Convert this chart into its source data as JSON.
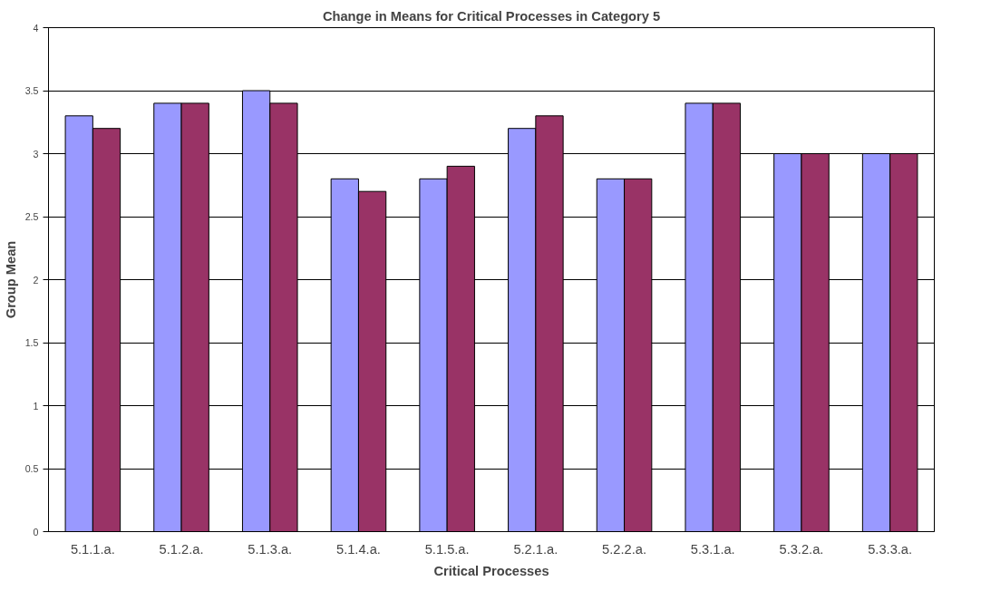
{
  "chart_data": {
    "type": "bar",
    "title": "Change in Means for Critical Processes in Category 5",
    "xlabel": "Critical Processes",
    "ylabel": "Group Mean",
    "categories": [
      "5.1.1.a.",
      "5.1.2.a.",
      "5.1.3.a.",
      "5.1.4.a.",
      "5.1.5.a.",
      "5.2.1.a.",
      "5.2.2.a.",
      "5.3.1.a.",
      "5.3.2.a.",
      "5.3.3.a."
    ],
    "series": [
      {
        "color": "#9999ff",
        "values": [
          3.3,
          3.4,
          3.5,
          2.8,
          2.8,
          3.2,
          2.8,
          3.4,
          3.0,
          3.0
        ]
      },
      {
        "color": "#993366",
        "values": [
          3.2,
          3.4,
          3.4,
          2.7,
          2.9,
          3.3,
          2.8,
          3.4,
          3.0,
          3.0
        ]
      }
    ],
    "ylim": [
      0,
      4
    ],
    "yticks": [
      0,
      0.5,
      1,
      1.5,
      2,
      2.5,
      3,
      3.5,
      4
    ],
    "grid": "y"
  }
}
